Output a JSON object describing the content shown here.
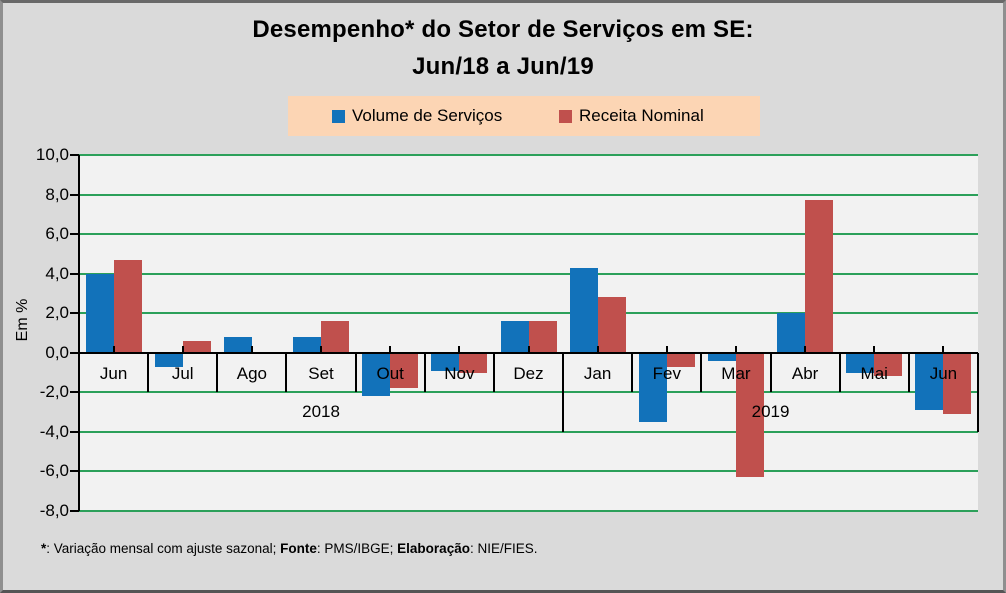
{
  "window": {
    "background": "#DADADA",
    "frame_color": "#7c7c7c"
  },
  "title": {
    "line1": "Desempenho* do Setor de Serviços em SE:",
    "line2": "Jun/18 a Jun/19"
  },
  "legend": {
    "background": "#FCD5B4",
    "items": [
      {
        "label": "Volume de Serviços",
        "color": "#1272BA"
      },
      {
        "label": "Receita Nominal",
        "color": "#C0504D"
      }
    ]
  },
  "chart_data": {
    "type": "bar",
    "title": "Desempenho* do Setor de Serviços em SE: Jun/18 a Jun/19",
    "xlabel": "",
    "ylabel": "Em %",
    "ylim": [
      -8,
      10
    ],
    "ytick_step": 2,
    "ytick_labels": [
      "10,0",
      "8,0",
      "6,0",
      "4,0",
      "2,0",
      "0,0",
      "-2,0",
      "-4,0",
      "-6,0",
      "-8,0"
    ],
    "categories": [
      "Jun",
      "Jul",
      "Ago",
      "Set",
      "Out",
      "Nov",
      "Dez",
      "Jan",
      "Fev",
      "Mar",
      "Abr",
      "Mai",
      "Jun"
    ],
    "year_groups": [
      {
        "label": "2018",
        "start": 0,
        "end": 7
      },
      {
        "label": "2019",
        "start": 7,
        "end": 13
      }
    ],
    "series": [
      {
        "name": "Volume de Serviços",
        "color": "#1272BA",
        "values": [
          4.0,
          -0.7,
          0.8,
          0.8,
          -2.2,
          -0.9,
          1.6,
          4.3,
          -3.5,
          -0.4,
          2.0,
          -1.0,
          -2.9
        ]
      },
      {
        "name": "Receita Nominal",
        "color": "#C0504D",
        "values": [
          4.7,
          0.6,
          0.0,
          1.6,
          -1.8,
          -1.0,
          1.6,
          2.8,
          -0.7,
          -6.3,
          7.7,
          -1.2,
          -3.1
        ]
      }
    ],
    "grid": true,
    "gridline_color": "#2CA05A",
    "axis_color": "#000000",
    "plot_background": "#F2F2F2",
    "legend_position": "top"
  },
  "footnote": {
    "segments": [
      {
        "text": "*",
        "bold": true
      },
      {
        "text": ": Variação mensal com ajuste sazonal; ",
        "bold": false
      },
      {
        "text": "Fonte",
        "bold": true
      },
      {
        "text": ": PMS/IBGE; ",
        "bold": false
      },
      {
        "text": "Elaboração",
        "bold": true
      },
      {
        "text": ": NIE/FIES.",
        "bold": false
      }
    ]
  }
}
